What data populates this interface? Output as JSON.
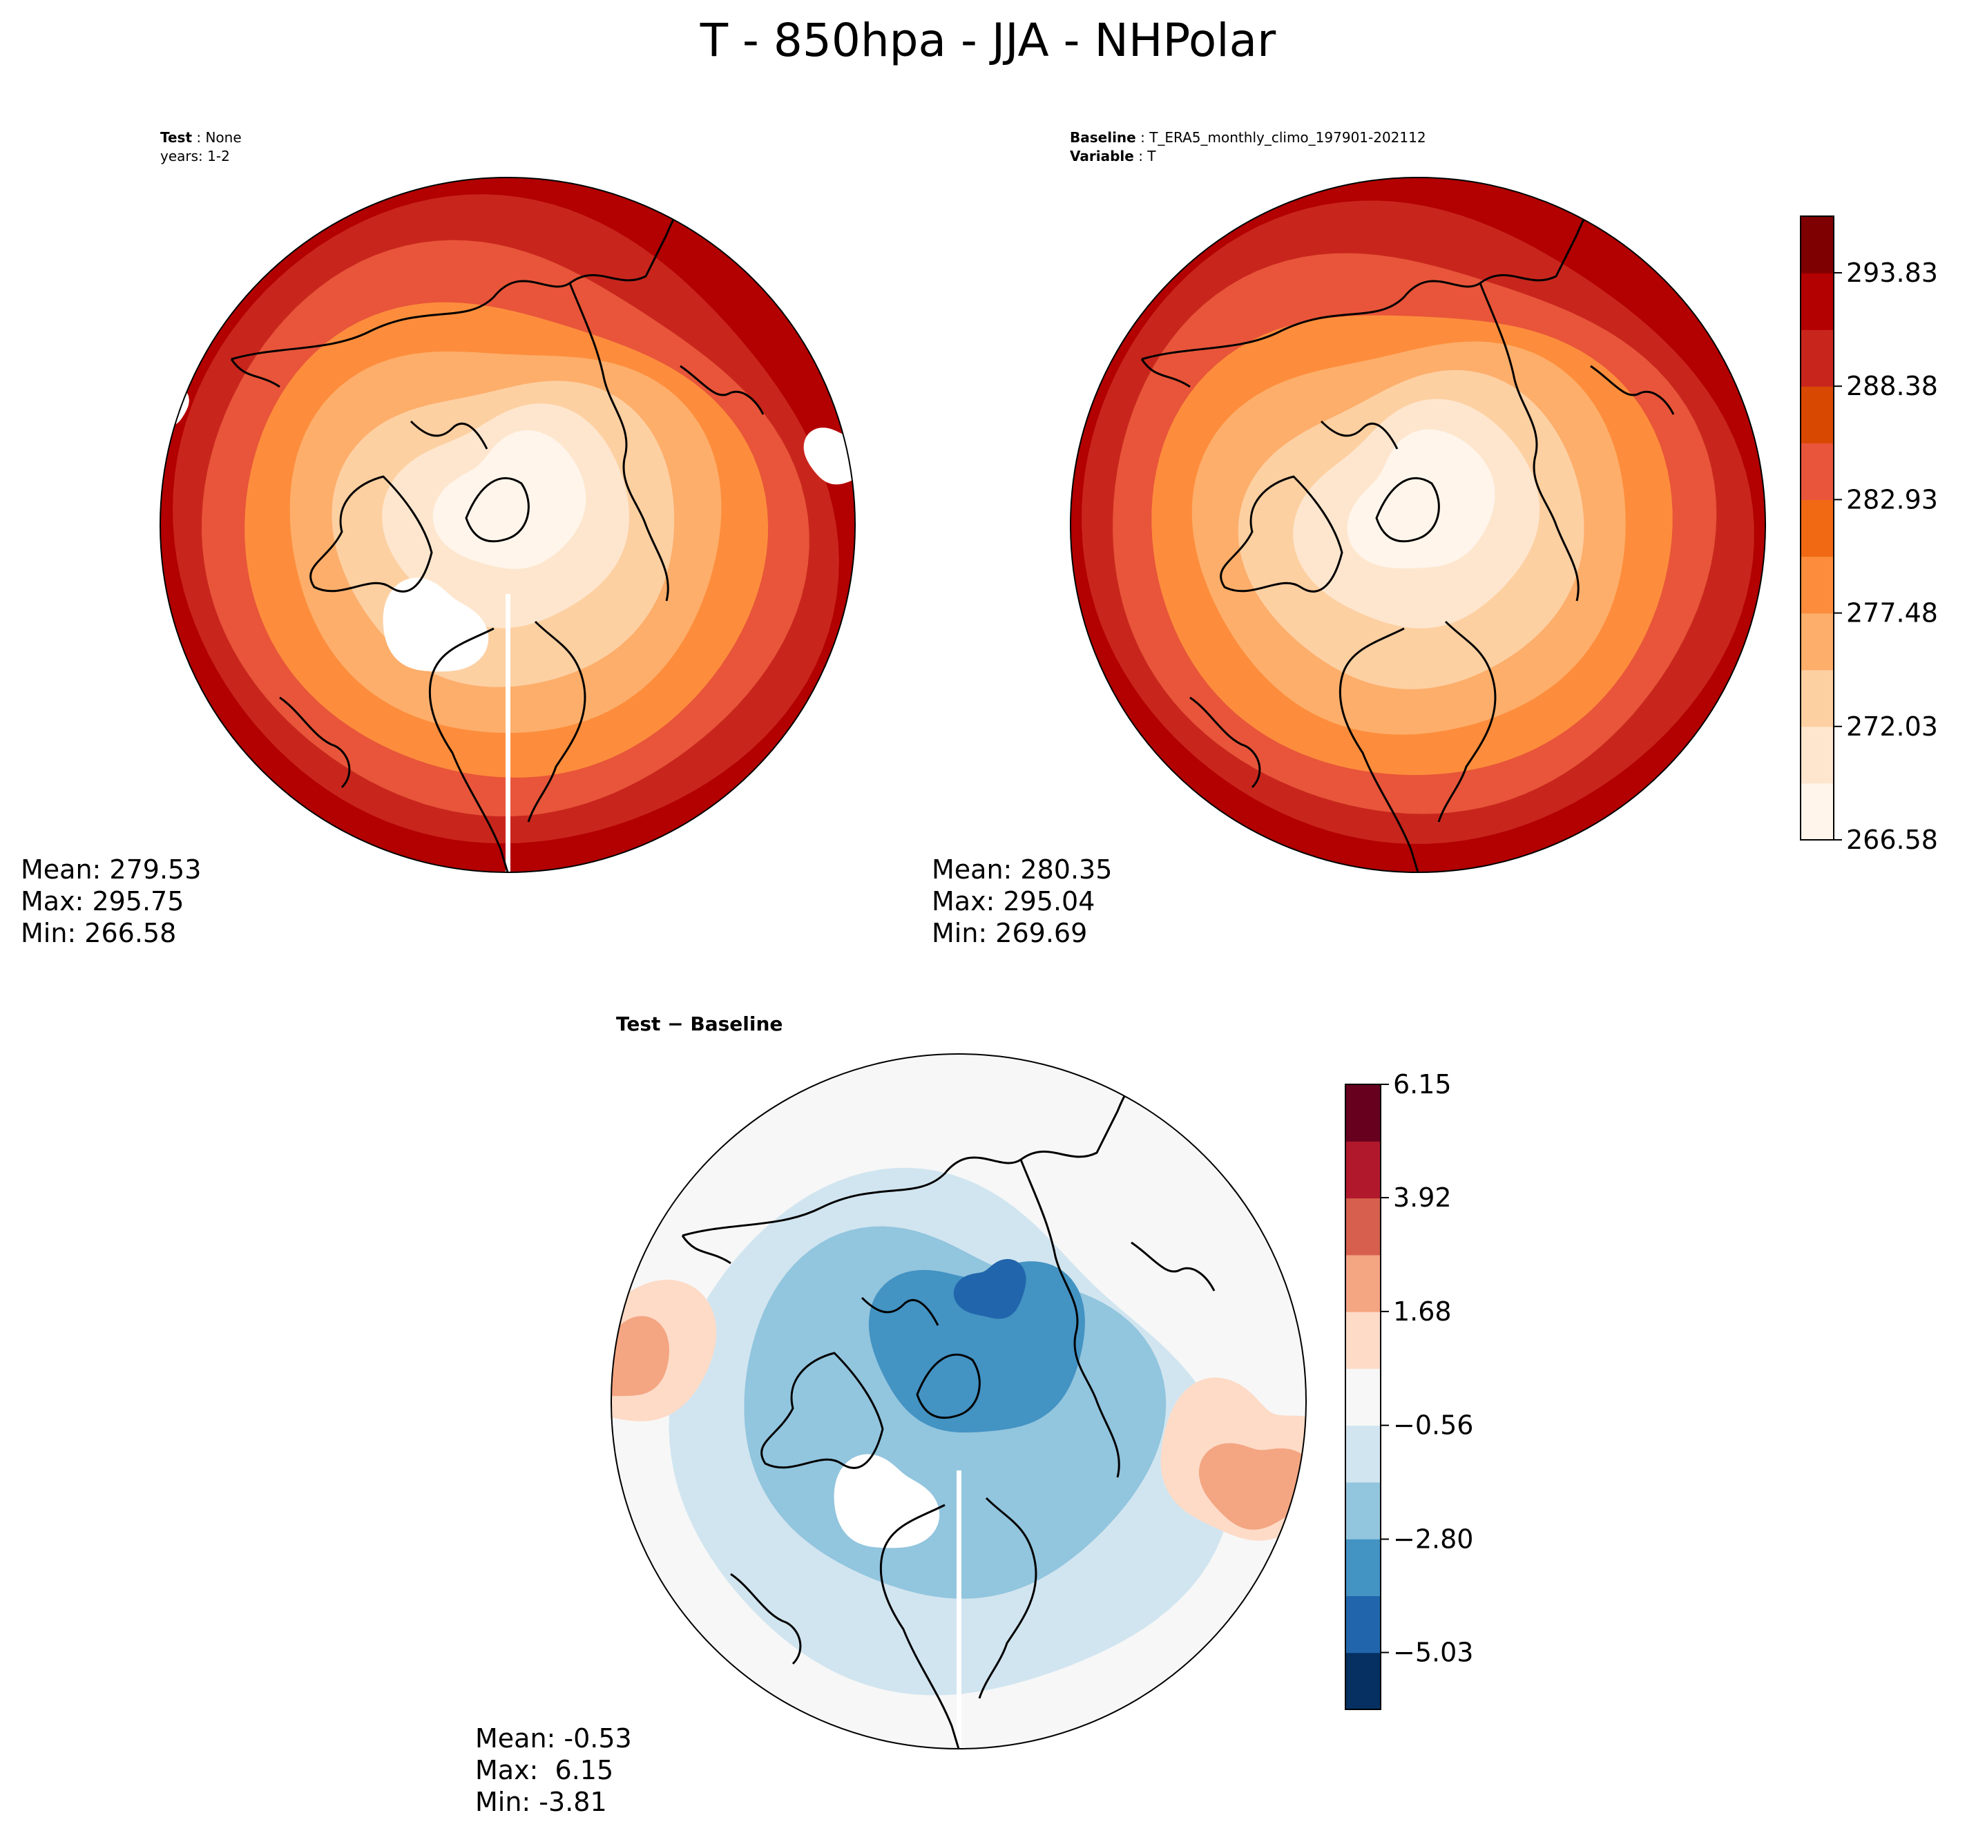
{
  "figure": {
    "title": "T - 850hpa - JJA - NHPolar"
  },
  "panels": {
    "test": {
      "caption_label": "Test",
      "caption_value": "None",
      "caption_line2": "years: 1-2",
      "stats": {
        "mean": "Mean: 279.53",
        "max": "Max: 295.75",
        "min": "Min: 266.58"
      }
    },
    "baseline": {
      "caption_label": "Baseline",
      "caption_value": "T_ERA5_monthly_climo_197901-202112",
      "caption_label2": "Variable",
      "caption_value2": "T",
      "stats": {
        "mean": "Mean: 280.35",
        "max": "Max: 295.04",
        "min": "Min: 269.69"
      }
    },
    "diff": {
      "title": "Test − Baseline",
      "stats": {
        "mean": "Mean: -0.53",
        "max": "Max:  6.15",
        "min": "Min: -3.81"
      }
    }
  },
  "colors": {
    "abs_levels": [
      "#fff5eb",
      "#fee6ce",
      "#fdd0a2",
      "#fdae6b",
      "#fd8d3c",
      "#f16913",
      "#e8553a",
      "#d94801",
      "#c8261d",
      "#b30000",
      "#7f0000"
    ],
    "diff_levels": [
      "#053061",
      "#2166ac",
      "#4393c3",
      "#92c5de",
      "#d1e5f0",
      "#f7f7f7",
      "#fddbc7",
      "#f4a582",
      "#d6604d",
      "#b2182b",
      "#67001f"
    ],
    "coast": "#000000",
    "missing": "#ffffff"
  },
  "chart_data": [
    {
      "type": "heatmap",
      "name": "test",
      "projection": "north polar stereographic",
      "units": "K",
      "title": "Test: None, years: 1-2",
      "mean": 279.53,
      "max": 295.75,
      "min": 266.58,
      "colorbar": {
        "ticks": [
          "266.58",
          "272.03",
          "277.48",
          "282.93",
          "288.38",
          "293.83"
        ],
        "range": [
          266.58,
          296.55
        ]
      }
    },
    {
      "type": "heatmap",
      "name": "baseline",
      "projection": "north polar stereographic",
      "units": "K",
      "title": "Baseline: T_ERA5_monthly_climo_197901-202112, Variable: T",
      "mean": 280.35,
      "max": 295.04,
      "min": 269.69,
      "colorbar": {
        "ticks": [
          "266.58",
          "272.03",
          "277.48",
          "282.93",
          "288.38",
          "293.83"
        ],
        "range": [
          266.58,
          296.55
        ]
      }
    },
    {
      "type": "heatmap",
      "name": "difference",
      "projection": "north polar stereographic",
      "units": "K",
      "title": "Test − Baseline",
      "mean": -0.53,
      "max": 6.15,
      "min": -3.81,
      "colorbar": {
        "ticks": [
          "6.15",
          "3.92",
          "1.68",
          "−0.56",
          "−2.80",
          "−5.03"
        ],
        "range": [
          -6.15,
          6.15
        ]
      }
    }
  ]
}
